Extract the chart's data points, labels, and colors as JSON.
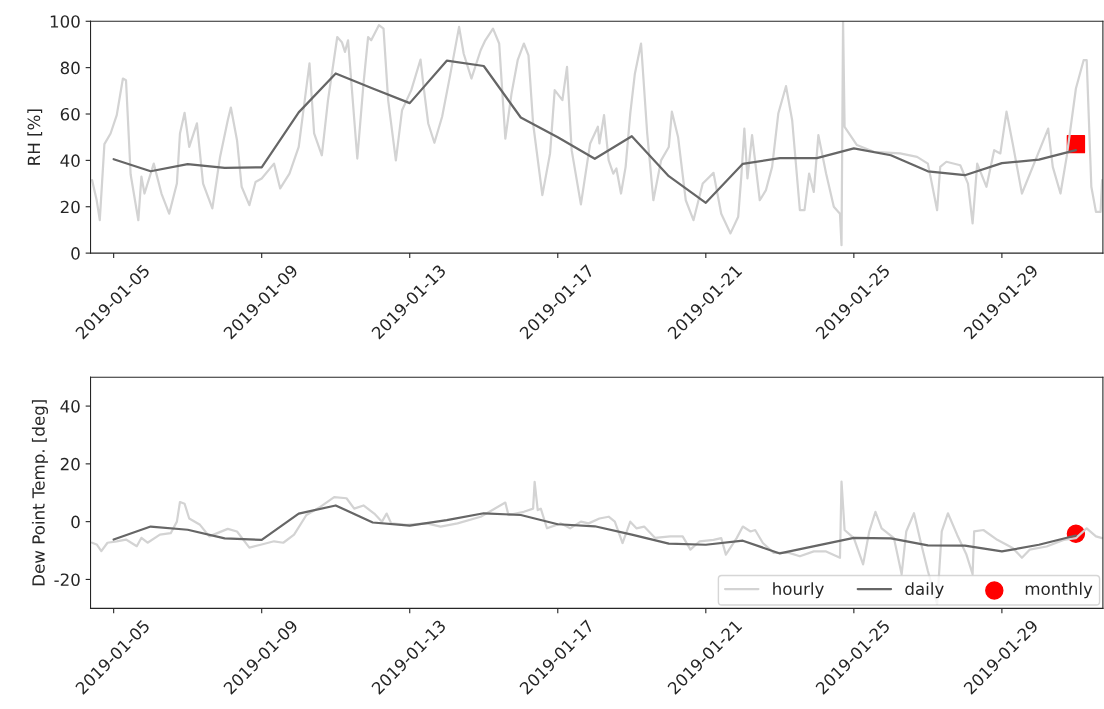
{
  "chart_data": [
    {
      "type": "line",
      "ylabel": "RH [%]",
      "xlim": [
        "2019-01-04T09:00",
        "2019-01-31T17:30"
      ],
      "xticks": [
        "2019-01-05",
        "2019-01-09",
        "2019-01-13",
        "2019-01-17",
        "2019-01-21",
        "2019-01-25",
        "2019-01-29"
      ],
      "ylim": [
        0,
        100
      ],
      "yticks": [
        0,
        20,
        40,
        60,
        80,
        100
      ],
      "grid": false,
      "legend": false,
      "series": [
        {
          "color": "#d3d3d3",
          "x": [
            "2019-01-04T10:00",
            "2019-01-04T13:00",
            "2019-01-04T15:00",
            "2019-01-04T18:00",
            "2019-01-04T22:00",
            "2019-01-05T02:00",
            "2019-01-05T06:00",
            "2019-01-05T08:00",
            "2019-01-05T11:00",
            "2019-01-05T16:00",
            "2019-01-05T18:00",
            "2019-01-05T20:00",
            "2019-01-06T02:00",
            "2019-01-06T07:00",
            "2019-01-06T12:00",
            "2019-01-06T17:00",
            "2019-01-06T19:00",
            "2019-01-06T22:00",
            "2019-01-07T01:00",
            "2019-01-07T06:00",
            "2019-01-07T10:00",
            "2019-01-07T16:00",
            "2019-01-07T21:00",
            "2019-01-08T02:00",
            "2019-01-08T04:00",
            "2019-01-08T08:00",
            "2019-01-08T11:00",
            "2019-01-08T16:00",
            "2019-01-08T20:00",
            "2019-01-09T00:00",
            "2019-01-09T08:00",
            "2019-01-09T12:00",
            "2019-01-09T18:00",
            "2019-01-10T00:00",
            "2019-01-10T07:00",
            "2019-01-10T10:00",
            "2019-01-10T15:00",
            "2019-01-10T19:00",
            "2019-01-11T01:00",
            "2019-01-11T04:00",
            "2019-01-11T06:00",
            "2019-01-11T08:00",
            "2019-01-11T14:00",
            "2019-01-11T18:00",
            "2019-01-11T21:00",
            "2019-01-11T23:00",
            "2019-01-12T04:00",
            "2019-01-12T07:00",
            "2019-01-12T10:00",
            "2019-01-12T15:00",
            "2019-01-12T19:00",
            "2019-01-13T01:00",
            "2019-01-13T07:00",
            "2019-01-13T09:00",
            "2019-01-13T12:00",
            "2019-01-13T16:00",
            "2019-01-13T21:00",
            "2019-01-14T02:00",
            "2019-01-14T08:00",
            "2019-01-14T11:00",
            "2019-01-14T16:00",
            "2019-01-14T22:00",
            "2019-01-15T01:00",
            "2019-01-15T06:00",
            "2019-01-15T10:00",
            "2019-01-15T14:00",
            "2019-01-15T18:00",
            "2019-01-15T22:00",
            "2019-01-16T02:00",
            "2019-01-16T05:00",
            "2019-01-16T08:00",
            "2019-01-16T14:00",
            "2019-01-16T19:00",
            "2019-01-16T22:00",
            "2019-01-17T03:00",
            "2019-01-17T06:00",
            "2019-01-17T09:00",
            "2019-01-17T15:00",
            "2019-01-17T21:00",
            "2019-01-18T02:00",
            "2019-01-18T03:00",
            "2019-01-18T06:00",
            "2019-01-18T09:00",
            "2019-01-18T12:00",
            "2019-01-18T14:00",
            "2019-01-18T17:00",
            "2019-01-18T20:00",
            "2019-01-18T23:00",
            "2019-01-19T02:00",
            "2019-01-19T06:00",
            "2019-01-19T10:00",
            "2019-01-19T14:00",
            "2019-01-19T19:00",
            "2019-01-20T00:00",
            "2019-01-20T02:00",
            "2019-01-20T06:00",
            "2019-01-20T11:00",
            "2019-01-20T16:00",
            "2019-01-20T22:00",
            "2019-01-21T05:00",
            "2019-01-21T10:00",
            "2019-01-21T16:00",
            "2019-01-21T21:00",
            "2019-01-21T23:00",
            "2019-01-22T01:00",
            "2019-01-22T03:00",
            "2019-01-22T06:00",
            "2019-01-22T11:00",
            "2019-01-22T15:00",
            "2019-01-22T19:00",
            "2019-01-22T23:00",
            "2019-01-23T04:00",
            "2019-01-23T08:00",
            "2019-01-23T13:00",
            "2019-01-23T16:00",
            "2019-01-23T19:00",
            "2019-01-23T22:00",
            "2019-01-24T01:00",
            "2019-01-24T06:00",
            "2019-01-24T11:00",
            "2019-01-24T15:00",
            "2019-01-24T16:00",
            "2019-01-24T17:00",
            "2019-01-24T18:00",
            "2019-01-25T02:00",
            "2019-01-25T13:00",
            "2019-01-26T06:00",
            "2019-01-26T17:00",
            "2019-01-27T00:00",
            "2019-01-27T03:00",
            "2019-01-27T06:00",
            "2019-01-27T08:00",
            "2019-01-27T12:00",
            "2019-01-27T21:00",
            "2019-01-28T02:00",
            "2019-01-28T05:00",
            "2019-01-28T08:00",
            "2019-01-28T14:00",
            "2019-01-28T19:00",
            "2019-01-28T23:00",
            "2019-01-29T03:00",
            "2019-01-29T07:00",
            "2019-01-29T13:00",
            "2019-01-29T20:00",
            "2019-01-30T03:00",
            "2019-01-30T06:00",
            "2019-01-30T09:00",
            "2019-01-30T14:00",
            "2019-01-30T18:00",
            "2019-01-31T00:00",
            "2019-01-31T05:00",
            "2019-01-31T07:00",
            "2019-01-31T10:00",
            "2019-01-31T13:00",
            "2019-01-31T16:00",
            "2019-01-31T17:00"
          ],
          "values": [
            31.5,
            22.8,
            14.2,
            47,
            51.6,
            59.5,
            75.3,
            74.6,
            34,
            14.2,
            33,
            25.7,
            38.6,
            25.7,
            17,
            30,
            51.6,
            60.5,
            45.8,
            56,
            30,
            19.3,
            41.5,
            57.3,
            62.8,
            48.7,
            28.6,
            20.7,
            30.7,
            32.2,
            38.6,
            27.9,
            34.3,
            45.8,
            81.8,
            51.6,
            42.2,
            66,
            93.2,
            91,
            86.8,
            91.8,
            40.8,
            73,
            93.2,
            91.8,
            98.3,
            96.8,
            66,
            40,
            61.6,
            70.3,
            83.5,
            71.7,
            55.9,
            47.6,
            58.8,
            76,
            97.6,
            86,
            75.3,
            87.5,
            91.8,
            96.8,
            90.4,
            49.4,
            68.8,
            83.2,
            90.4,
            85.3,
            55.9,
            25,
            43,
            70.3,
            66,
            80.3,
            44.4,
            21,
            47.3,
            54.5,
            47.3,
            59.5,
            40,
            34.3,
            36.5,
            25.7,
            37.2,
            60.2,
            77.4,
            90.4,
            51.6,
            22.8,
            40,
            45.8,
            61,
            50.1,
            22.8,
            14.2,
            30,
            34.6,
            17,
            8.5,
            15.7,
            32.9,
            53.7,
            32.2,
            50.9,
            22.8,
            27.2,
            37.2,
            60.2,
            72,
            57.3,
            18.5,
            18.5,
            34.3,
            26.4,
            50.9,
            34.3,
            20,
            17,
            3.4,
            100,
            54.5,
            46.6,
            43.7,
            43,
            41.5,
            38.6,
            28.6,
            18.5,
            37.2,
            39.4,
            37.9,
            30,
            12.8,
            38.6,
            28.6,
            44.4,
            43,
            61,
            47.3,
            25.7,
            37.2,
            48.7,
            53.7,
            37.2,
            25.7,
            41.5,
            71,
            83.2,
            83.2,
            28.6,
            17.8,
            17.8,
            31.5
          ]
        },
        {
          "color": "#666666",
          "x": [
            "2019-01-05",
            "2019-01-06",
            "2019-01-07",
            "2019-01-08",
            "2019-01-09",
            "2019-01-10",
            "2019-01-11",
            "2019-01-12",
            "2019-01-13",
            "2019-01-14",
            "2019-01-15",
            "2019-01-16",
            "2019-01-17",
            "2019-01-18",
            "2019-01-19",
            "2019-01-20",
            "2019-01-21",
            "2019-01-22",
            "2019-01-23",
            "2019-01-24",
            "2019-01-25",
            "2019-01-26",
            "2019-01-27",
            "2019-01-28",
            "2019-01-29",
            "2019-01-30",
            "2019-01-31"
          ],
          "values": [
            40.5,
            35.3,
            38.4,
            36.8,
            37,
            60.7,
            77.5,
            71,
            64.7,
            83,
            80.7,
            58.5,
            50,
            40.7,
            50.4,
            33.2,
            21.7,
            38.5,
            41,
            41,
            45.2,
            42.2,
            35.3,
            33.6,
            38.8,
            40.3,
            44.4
          ]
        },
        {
          "type": "scatter",
          "color": "#ff0000",
          "marker": "square",
          "x": [
            "2019-01-31"
          ],
          "values": [
            47
          ]
        }
      ]
    },
    {
      "type": "line",
      "ylabel": "Dew Point Temp. [deg]",
      "xlim": [
        "2019-01-04T09:00",
        "2019-01-31T17:30"
      ],
      "xticks": [
        "2019-01-05",
        "2019-01-09",
        "2019-01-13",
        "2019-01-17",
        "2019-01-21",
        "2019-01-25",
        "2019-01-29"
      ],
      "ylim": [
        -30,
        50
      ],
      "yticks": [
        -20,
        0,
        20,
        40
      ],
      "grid": false,
      "legend": "bottom right",
      "series": [
        {
          "name": "hourly",
          "color": "#d3d3d3",
          "x": [
            "2019-01-04T10:00",
            "2019-01-04T13:00",
            "2019-01-04T16:00",
            "2019-01-04T20:00",
            "2019-01-05T02:00",
            "2019-01-05T08:00",
            "2019-01-05T15:00",
            "2019-01-05T18:00",
            "2019-01-05T22:00",
            "2019-01-06T06:00",
            "2019-01-06T13:00",
            "2019-01-06T17:00",
            "2019-01-06T19:00",
            "2019-01-06T22:00",
            "2019-01-07T01:00",
            "2019-01-07T08:00",
            "2019-01-07T14:00",
            "2019-01-08T02:00",
            "2019-01-08T08:00",
            "2019-01-08T16:00",
            "2019-01-09T00:00",
            "2019-01-09T08:00",
            "2019-01-09T14:00",
            "2019-01-09T21:00",
            "2019-01-10T05:00",
            "2019-01-10T14:00",
            "2019-01-10T23:00",
            "2019-01-11T07:00",
            "2019-01-11T12:00",
            "2019-01-11T18:00",
            "2019-01-12T01:00",
            "2019-01-12T06:00",
            "2019-01-12T09:00",
            "2019-01-12T12:00",
            "2019-01-12T22:00",
            "2019-01-13T11:00",
            "2019-01-13T20:00",
            "2019-01-14T07:00",
            "2019-01-14T22:00",
            "2019-01-15T14:00",
            "2019-01-15T16:00",
            "2019-01-16T02:00",
            "2019-01-16T08:00",
            "2019-01-16T09:00",
            "2019-01-16T11:00",
            "2019-01-16T13:00",
            "2019-01-16T17:00",
            "2019-01-17T02:00",
            "2019-01-17T08:00",
            "2019-01-17T15:00",
            "2019-01-17T20:00",
            "2019-01-18T03:00",
            "2019-01-18T09:00",
            "2019-01-18T13:00",
            "2019-01-18T18:00",
            "2019-01-18T23:00",
            "2019-01-19T03:00",
            "2019-01-19T08:00",
            "2019-01-19T15:00",
            "2019-01-20T01:00",
            "2019-01-20T09:00",
            "2019-01-20T14:00",
            "2019-01-20T20:00",
            "2019-01-21T05:00",
            "2019-01-21T10:00",
            "2019-01-21T13:00",
            "2019-01-21T20:00",
            "2019-01-22T00:00",
            "2019-01-22T05:00",
            "2019-01-22T08:00",
            "2019-01-22T13:00",
            "2019-01-22T20:00",
            "2019-01-23T06:00",
            "2019-01-23T13:00",
            "2019-01-23T22:00",
            "2019-01-24T06:00",
            "2019-01-24T15:00",
            "2019-01-24T16:00",
            "2019-01-24T18:00",
            "2019-01-25T00:00",
            "2019-01-25T06:00",
            "2019-01-25T10:00",
            "2019-01-25T14:00",
            "2019-01-25T18:00",
            "2019-01-26T02:00",
            "2019-01-26T07:00",
            "2019-01-26T10:00",
            "2019-01-26T15:00",
            "2019-01-26T19:00",
            "2019-01-27T00:00",
            "2019-01-27T06:00",
            "2019-01-27T09:00",
            "2019-01-27T13:00",
            "2019-01-27T19:00",
            "2019-01-28T01:00",
            "2019-01-28T05:00",
            "2019-01-28T06:00",
            "2019-01-28T12:00",
            "2019-01-28T21:00",
            "2019-01-29T07:00",
            "2019-01-29T13:00",
            "2019-01-29T18:00",
            "2019-01-30T05:00",
            "2019-01-30T16:00",
            "2019-01-31T00:00",
            "2019-01-31T07:00",
            "2019-01-31T13:00",
            "2019-01-31T17:00"
          ],
          "values": [
            -7.3,
            -7.9,
            -10.2,
            -7.3,
            -6.8,
            -6.2,
            -8.5,
            -5.6,
            -7.3,
            -4.5,
            -4,
            0,
            6.8,
            6.2,
            1.1,
            -1.1,
            -5.1,
            -2.5,
            -3.4,
            -9,
            -7.9,
            -6.8,
            -7.3,
            -4.5,
            2.3,
            5.1,
            8.5,
            8.1,
            4.5,
            5.6,
            2.8,
            0,
            2.8,
            -0.6,
            -1.1,
            -0.6,
            -1.7,
            -0.6,
            1.7,
            6.6,
            2.3,
            3.4,
            4.5,
            13.8,
            4,
            4.5,
            -2.3,
            -0.6,
            -2.3,
            0,
            -0.6,
            1.1,
            1.7,
            0,
            -7.4,
            0,
            -2.3,
            -1.7,
            -5.6,
            -5.1,
            -5.1,
            -9.7,
            -6.8,
            -6.3,
            -5.7,
            -11.4,
            -5.7,
            -1.7,
            -3.4,
            -2.9,
            -7.4,
            -10.8,
            -10.8,
            -12,
            -10.3,
            -10.3,
            -12.5,
            13.9,
            -2.9,
            -5.7,
            -14.8,
            -3.4,
            3.4,
            -2.3,
            -5.7,
            -18.2,
            -3.4,
            2.9,
            -6.3,
            -17.1,
            -28.5,
            -3.4,
            2.9,
            -4.6,
            -11.4,
            -18.2,
            -3.4,
            -2.9,
            -6.3,
            -9.1,
            -12.5,
            -9.7,
            -8.6,
            -6.3,
            -5.7,
            -2.3,
            -5.1,
            -5.7
          ]
        },
        {
          "name": "daily",
          "color": "#666666",
          "x": [
            "2019-01-05",
            "2019-01-06",
            "2019-01-07",
            "2019-01-08",
            "2019-01-09",
            "2019-01-10",
            "2019-01-11",
            "2019-01-12",
            "2019-01-13",
            "2019-01-14",
            "2019-01-15",
            "2019-01-16",
            "2019-01-17",
            "2019-01-18",
            "2019-01-19",
            "2019-01-20",
            "2019-01-21",
            "2019-01-22",
            "2019-01-23",
            "2019-01-24",
            "2019-01-25",
            "2019-01-26",
            "2019-01-27",
            "2019-01-28",
            "2019-01-29",
            "2019-01-30",
            "2019-01-31"
          ],
          "values": [
            -6.2,
            -1.7,
            -2.8,
            -5.8,
            -6.3,
            2.8,
            5.6,
            -0.3,
            -1.4,
            0.5,
            2.9,
            2.3,
            -0.9,
            -1.6,
            -4.5,
            -7.6,
            -8,
            -6.6,
            -11,
            -8.3,
            -5.6,
            -5.8,
            -8.2,
            -8.3,
            -10.3,
            -8,
            -4.8
          ]
        },
        {
          "type": "scatter",
          "name": "monthly",
          "color": "#ff0000",
          "marker": "circle",
          "x": [
            "2019-01-31"
          ],
          "values": [
            -4.2
          ]
        }
      ]
    }
  ]
}
